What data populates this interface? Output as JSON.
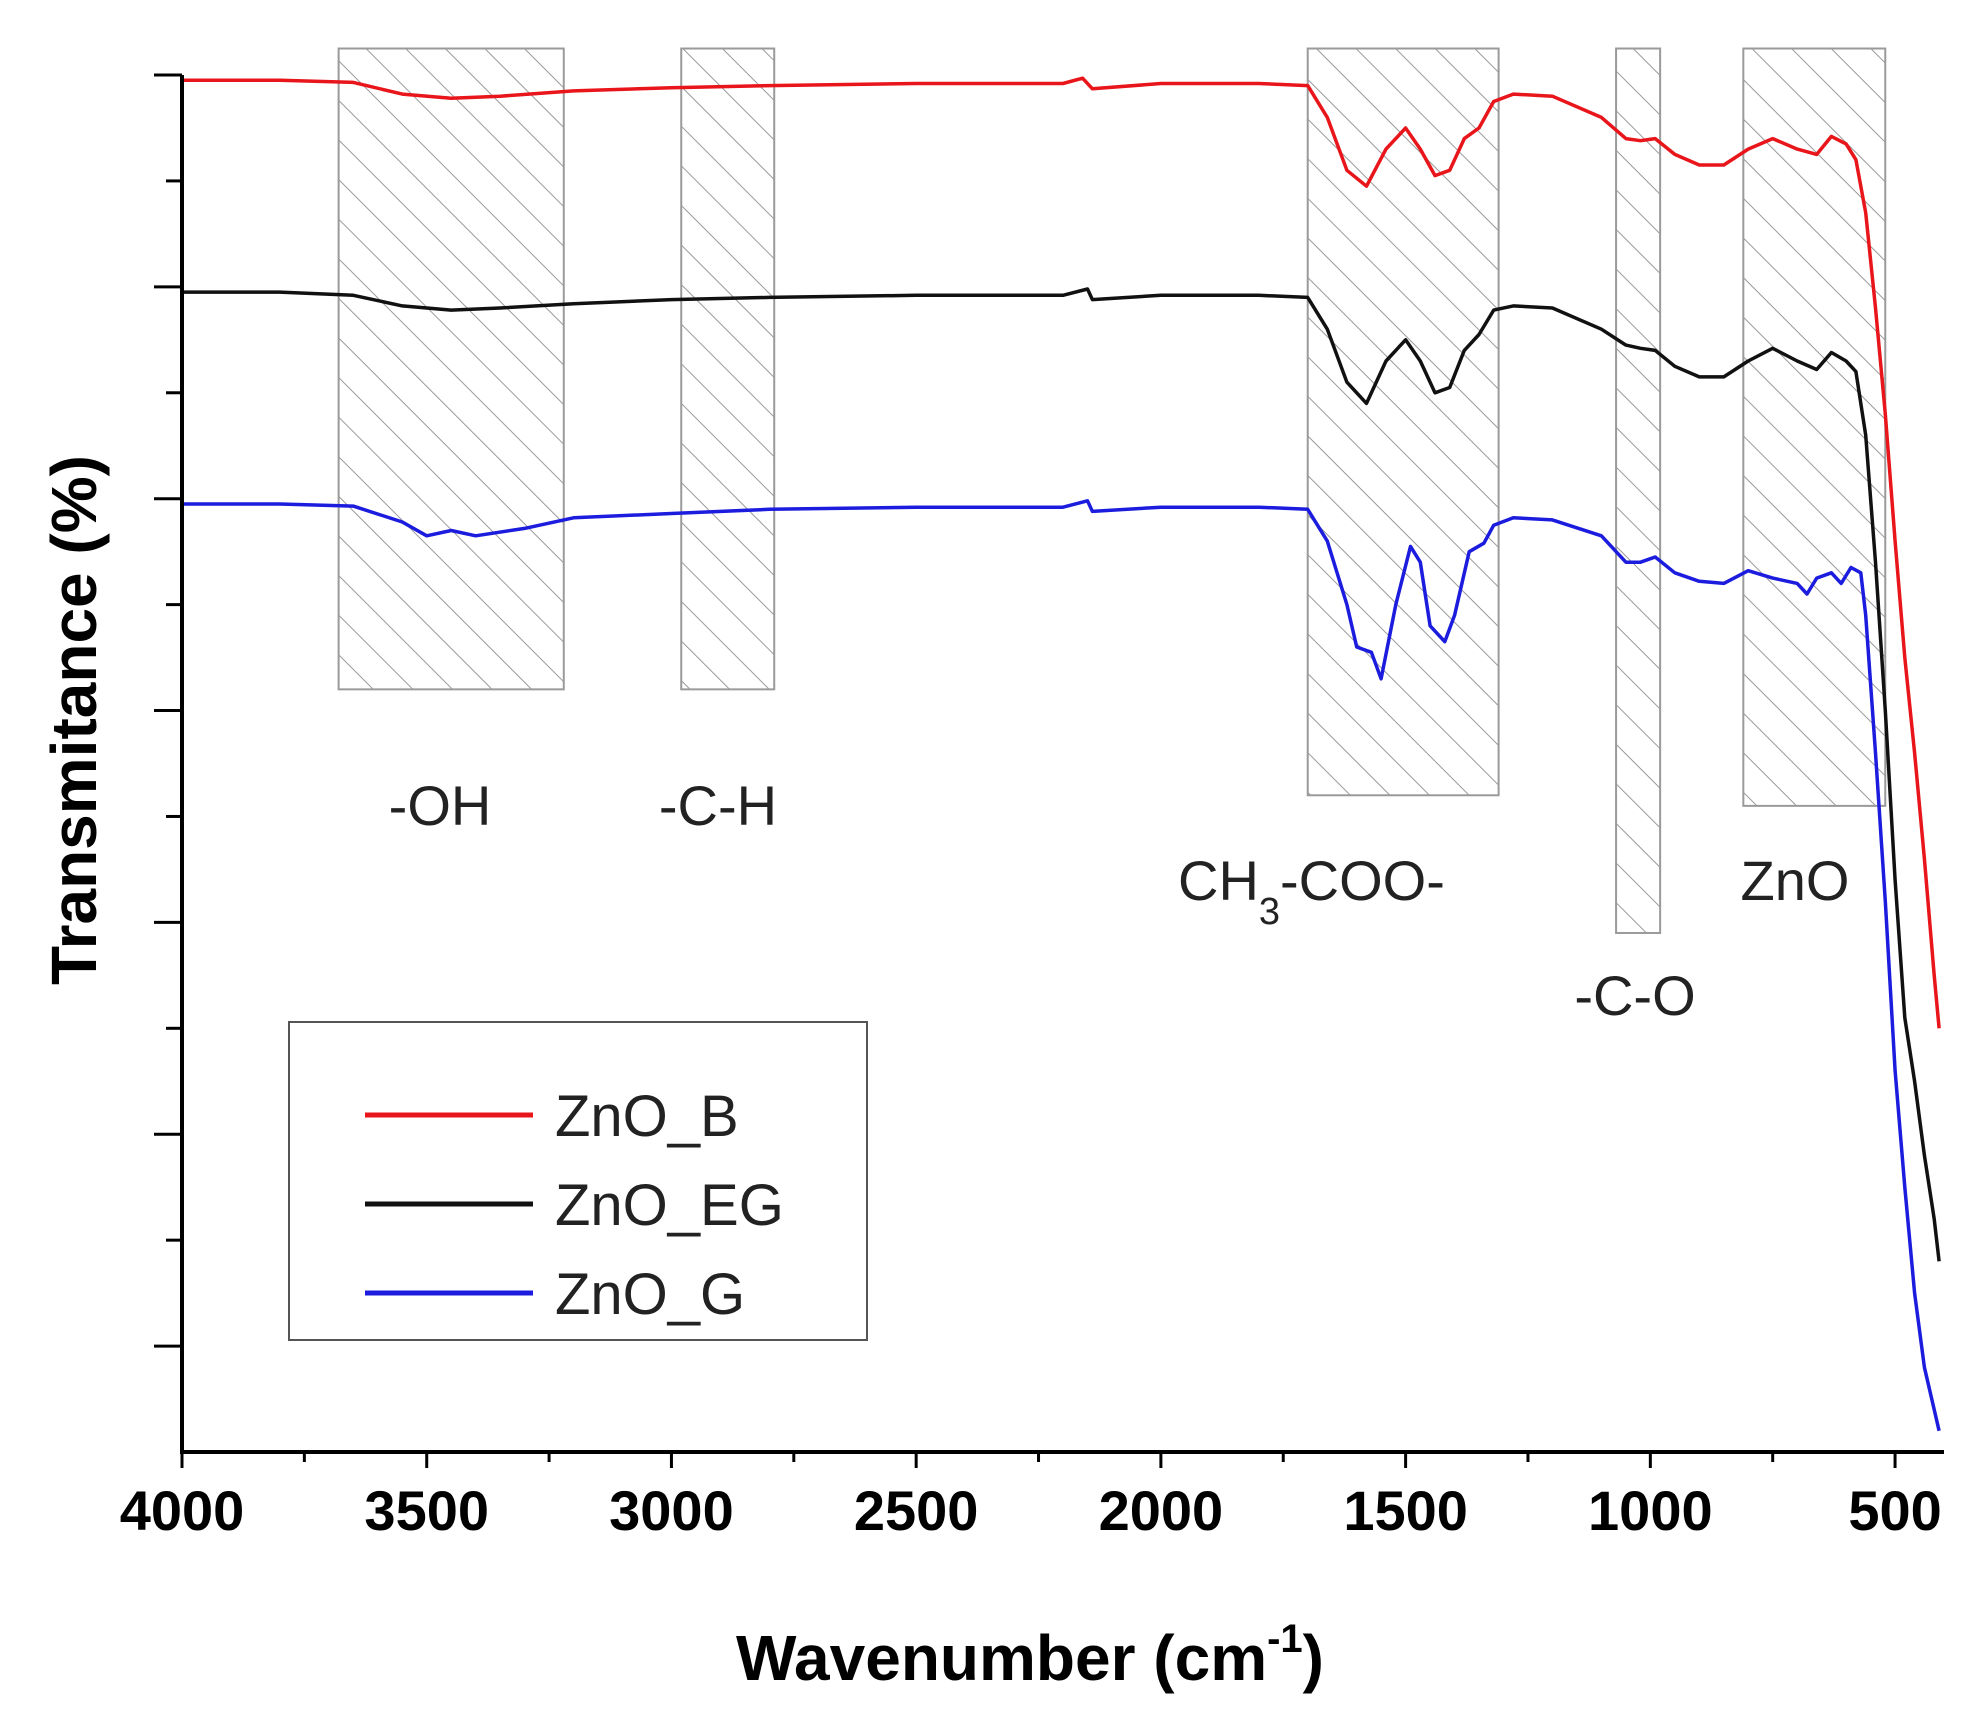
{
  "chart_data": {
    "type": "line",
    "title": "",
    "xlabel": "Wavenumber (cm",
    "xlabel_sup": "-1",
    "xlabel_close": ")",
    "ylabel": "Transmitance (%)",
    "xlim": [
      4000,
      400
    ],
    "ylim": [
      0,
      13
    ],
    "x_inverted": true,
    "y_tick_labels_shown": false,
    "x_ticks": [
      4000,
      3500,
      3000,
      2500,
      2000,
      1500,
      1000,
      500
    ],
    "x_tick_labels": [
      "4000",
      "3500",
      "3000",
      "2500",
      "2000",
      "1500",
      "1000",
      "500"
    ],
    "x_minor_step": 250,
    "y_major_ticks": [
      1,
      3,
      5,
      7,
      9,
      11,
      13
    ],
    "y_minor_ticks": [
      2,
      4,
      6,
      8,
      10,
      12
    ],
    "grid": false,
    "legend_position": "bottom-left",
    "series": [
      {
        "name": "ZnO_B",
        "color": "#e8151b",
        "points": [
          [
            4000,
            12.95
          ],
          [
            3800,
            12.95
          ],
          [
            3650,
            12.93
          ],
          [
            3550,
            12.82
          ],
          [
            3450,
            12.78
          ],
          [
            3350,
            12.8
          ],
          [
            3200,
            12.85
          ],
          [
            3000,
            12.88
          ],
          [
            2800,
            12.9
          ],
          [
            2500,
            12.92
          ],
          [
            2200,
            12.92
          ],
          [
            2160,
            12.97
          ],
          [
            2140,
            12.87
          ],
          [
            2000,
            12.92
          ],
          [
            1800,
            12.92
          ],
          [
            1700,
            12.9
          ],
          [
            1660,
            12.6
          ],
          [
            1620,
            12.1
          ],
          [
            1580,
            11.95
          ],
          [
            1540,
            12.3
          ],
          [
            1500,
            12.5
          ],
          [
            1470,
            12.3
          ],
          [
            1440,
            12.05
          ],
          [
            1410,
            12.1
          ],
          [
            1380,
            12.4
          ],
          [
            1350,
            12.5
          ],
          [
            1320,
            12.75
          ],
          [
            1280,
            12.82
          ],
          [
            1200,
            12.8
          ],
          [
            1100,
            12.6
          ],
          [
            1050,
            12.4
          ],
          [
            1020,
            12.38
          ],
          [
            990,
            12.4
          ],
          [
            950,
            12.25
          ],
          [
            900,
            12.15
          ],
          [
            850,
            12.15
          ],
          [
            800,
            12.3
          ],
          [
            750,
            12.4
          ],
          [
            700,
            12.3
          ],
          [
            660,
            12.25
          ],
          [
            630,
            12.42
          ],
          [
            600,
            12.35
          ],
          [
            580,
            12.2
          ],
          [
            560,
            11.7
          ],
          [
            540,
            10.8
          ],
          [
            520,
            9.8
          ],
          [
            500,
            8.6
          ],
          [
            480,
            7.5
          ],
          [
            460,
            6.6
          ],
          [
            440,
            5.6
          ],
          [
            420,
            4.5
          ],
          [
            410,
            4.0
          ]
        ]
      },
      {
        "name": "ZnO_EG",
        "color": "#111111",
        "points": [
          [
            4000,
            10.95
          ],
          [
            3800,
            10.95
          ],
          [
            3650,
            10.92
          ],
          [
            3550,
            10.82
          ],
          [
            3450,
            10.78
          ],
          [
            3350,
            10.8
          ],
          [
            3200,
            10.84
          ],
          [
            3000,
            10.88
          ],
          [
            2800,
            10.9
          ],
          [
            2500,
            10.92
          ],
          [
            2200,
            10.92
          ],
          [
            2150,
            10.98
          ],
          [
            2140,
            10.88
          ],
          [
            2000,
            10.92
          ],
          [
            1800,
            10.92
          ],
          [
            1700,
            10.9
          ],
          [
            1660,
            10.6
          ],
          [
            1620,
            10.1
          ],
          [
            1580,
            9.9
          ],
          [
            1540,
            10.3
          ],
          [
            1500,
            10.5
          ],
          [
            1470,
            10.3
          ],
          [
            1440,
            10.0
          ],
          [
            1410,
            10.05
          ],
          [
            1380,
            10.4
          ],
          [
            1350,
            10.55
          ],
          [
            1320,
            10.78
          ],
          [
            1280,
            10.82
          ],
          [
            1200,
            10.8
          ],
          [
            1100,
            10.6
          ],
          [
            1050,
            10.45
          ],
          [
            1020,
            10.42
          ],
          [
            990,
            10.4
          ],
          [
            950,
            10.25
          ],
          [
            900,
            10.15
          ],
          [
            850,
            10.15
          ],
          [
            800,
            10.3
          ],
          [
            750,
            10.42
          ],
          [
            700,
            10.3
          ],
          [
            660,
            10.22
          ],
          [
            630,
            10.38
          ],
          [
            600,
            10.3
          ],
          [
            580,
            10.2
          ],
          [
            560,
            9.6
          ],
          [
            540,
            8.4
          ],
          [
            520,
            7.0
          ],
          [
            500,
            5.4
          ],
          [
            480,
            4.1
          ],
          [
            460,
            3.5
          ],
          [
            440,
            2.8
          ],
          [
            420,
            2.2
          ],
          [
            410,
            1.8
          ]
        ]
      },
      {
        "name": "ZnO_G",
        "color": "#1c1cde",
        "points": [
          [
            4000,
            8.95
          ],
          [
            3800,
            8.95
          ],
          [
            3650,
            8.93
          ],
          [
            3550,
            8.78
          ],
          [
            3500,
            8.65
          ],
          [
            3450,
            8.7
          ],
          [
            3400,
            8.65
          ],
          [
            3300,
            8.72
          ],
          [
            3200,
            8.82
          ],
          [
            3000,
            8.86
          ],
          [
            2800,
            8.9
          ],
          [
            2500,
            8.92
          ],
          [
            2200,
            8.92
          ],
          [
            2150,
            8.98
          ],
          [
            2140,
            8.88
          ],
          [
            2000,
            8.92
          ],
          [
            1800,
            8.92
          ],
          [
            1700,
            8.9
          ],
          [
            1660,
            8.6
          ],
          [
            1620,
            8.0
          ],
          [
            1600,
            7.6
          ],
          [
            1570,
            7.55
          ],
          [
            1550,
            7.3
          ],
          [
            1520,
            8.0
          ],
          [
            1490,
            8.55
          ],
          [
            1470,
            8.4
          ],
          [
            1450,
            7.8
          ],
          [
            1420,
            7.65
          ],
          [
            1400,
            7.9
          ],
          [
            1370,
            8.5
          ],
          [
            1340,
            8.58
          ],
          [
            1320,
            8.75
          ],
          [
            1280,
            8.82
          ],
          [
            1200,
            8.8
          ],
          [
            1100,
            8.65
          ],
          [
            1050,
            8.4
          ],
          [
            1020,
            8.4
          ],
          [
            990,
            8.45
          ],
          [
            950,
            8.3
          ],
          [
            900,
            8.22
          ],
          [
            850,
            8.2
          ],
          [
            800,
            8.32
          ],
          [
            750,
            8.25
          ],
          [
            700,
            8.2
          ],
          [
            680,
            8.1
          ],
          [
            660,
            8.25
          ],
          [
            630,
            8.3
          ],
          [
            610,
            8.2
          ],
          [
            590,
            8.35
          ],
          [
            570,
            8.3
          ],
          [
            560,
            7.9
          ],
          [
            540,
            6.6
          ],
          [
            520,
            5.2
          ],
          [
            500,
            3.6
          ],
          [
            480,
            2.5
          ],
          [
            460,
            1.5
          ],
          [
            440,
            0.8
          ],
          [
            420,
            0.4
          ],
          [
            410,
            0.2
          ]
        ]
      }
    ],
    "bands": [
      {
        "label": "-OH",
        "x_range": [
          3680,
          3220
        ],
        "y_range": [
          7.2,
          13.25
        ]
      },
      {
        "label": "-C-H",
        "x_range": [
          2980,
          2790
        ],
        "y_range": [
          7.2,
          13.25
        ]
      },
      {
        "label": "CH3-COO-",
        "x_range": [
          1700,
          1310
        ],
        "y_range": [
          6.2,
          13.25
        ]
      },
      {
        "label": "-C-O",
        "x_range": [
          1070,
          980
        ],
        "y_range": [
          4.9,
          13.25
        ]
      },
      {
        "label": "ZnO",
        "x_range": [
          810,
          520
        ],
        "y_range": [
          6.1,
          13.25
        ]
      }
    ],
    "band_labels": {
      "oh": "-OH",
      "ch": "-C-H",
      "acetate_main": "CH",
      "acetate_sub": "3",
      "acetate_tail": "-COO-",
      "co": "-C-O",
      "zno": "ZnO"
    }
  }
}
